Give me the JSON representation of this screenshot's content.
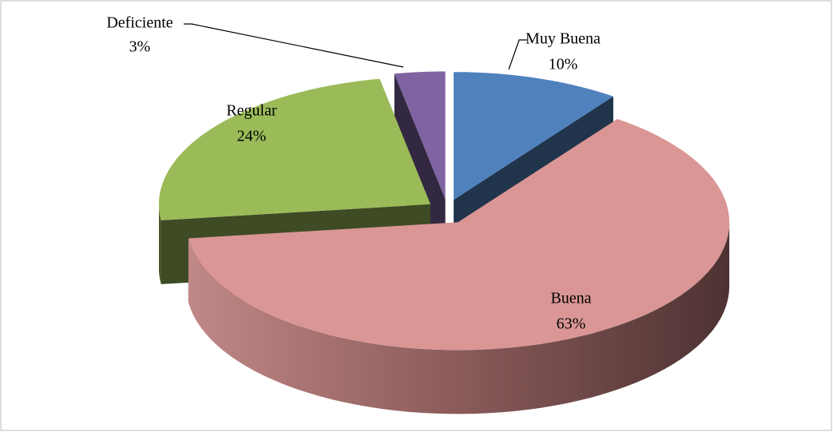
{
  "chart_data": {
    "type": "pie3d",
    "categories": [
      "Muy Buena",
      "Buena",
      "Regular",
      "Deficiente"
    ],
    "values": [
      10,
      63,
      24,
      3
    ],
    "value_labels": [
      "10%",
      "63%",
      "24%",
      "3%"
    ],
    "colors": [
      "#4f81bd",
      "#d99694",
      "#9bbb59",
      "#8064a2"
    ]
  }
}
